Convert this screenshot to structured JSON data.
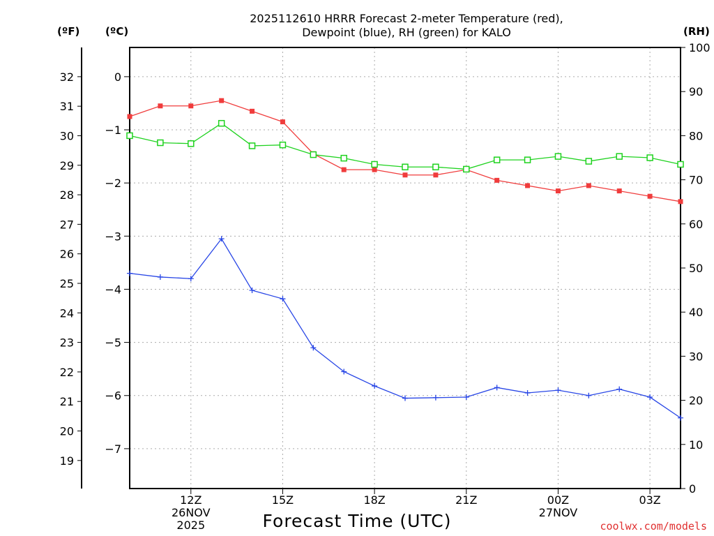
{
  "chart_data": {
    "type": "line",
    "title_line1": "2025112610 HRRR Forecast 2-meter Temperature (red),",
    "title_line2": "Dewpoint (blue), RH (green) for KALO",
    "xlabel": "Forecast Time (UTC)",
    "units": {
      "fahrenheit": "(ºF)",
      "celsius": "(ºC)",
      "rh": "(RH)"
    },
    "credit": "coolwx.com/models",
    "x_hours_utc": [
      10,
      11,
      12,
      13,
      14,
      15,
      16,
      17,
      18,
      19,
      20,
      21,
      22,
      23,
      24,
      25,
      26,
      27,
      28
    ],
    "x_ticks": [
      {
        "hour": 12,
        "lines": [
          "12Z",
          "26NOV",
          "2025"
        ]
      },
      {
        "hour": 15,
        "lines": [
          "15Z"
        ]
      },
      {
        "hour": 18,
        "lines": [
          "18Z"
        ]
      },
      {
        "hour": 21,
        "lines": [
          "21Z"
        ]
      },
      {
        "hour": 24,
        "lines": [
          "00Z",
          "27NOV"
        ]
      },
      {
        "hour": 27,
        "lines": [
          "03Z"
        ]
      }
    ],
    "y_celsius": {
      "range": [
        -7.75,
        0.55
      ],
      "ticks": [
        0,
        -1,
        -2,
        -3,
        -4,
        -5,
        -6,
        -7
      ],
      "tick_labels": [
        "0",
        "−1",
        "−2",
        "−3",
        "−4",
        "−5",
        "−6",
        "−7"
      ]
    },
    "y_fahrenheit": {
      "ticks": [
        19,
        20,
        21,
        22,
        23,
        24,
        25,
        26,
        27,
        28,
        29,
        30,
        31,
        32
      ],
      "tick_labels": [
        "19",
        "20",
        "21",
        "22",
        "23",
        "24",
        "25",
        "26",
        "27",
        "28",
        "29",
        "30",
        "31",
        "32"
      ]
    },
    "y_rh": {
      "range": [
        0,
        100
      ],
      "ticks": [
        0,
        10,
        20,
        30,
        40,
        50,
        60,
        70,
        80,
        90,
        100
      ],
      "tick_labels": [
        "0",
        "10",
        "20",
        "30",
        "40",
        "50",
        "60",
        "70",
        "80",
        "90",
        "100"
      ]
    },
    "series": [
      {
        "name": "2-meter Temperature",
        "color": "#f03c3c",
        "axis": "celsius",
        "marker": "filled-square",
        "values": [
          -0.75,
          -0.55,
          -0.55,
          -0.45,
          -0.65,
          -0.85,
          -1.45,
          -1.75,
          -1.75,
          -1.85,
          -1.85,
          -1.75,
          -1.95,
          -2.05,
          -2.15,
          -2.05,
          -2.15,
          -2.25,
          -2.35
        ]
      },
      {
        "name": "Dewpoint",
        "color": "#2846e6",
        "axis": "celsius",
        "marker": "plus",
        "values": [
          -3.7,
          -3.77,
          -3.8,
          -3.05,
          -4.02,
          -4.18,
          -5.1,
          -5.55,
          -5.82,
          -6.05,
          -6.04,
          -6.03,
          -5.85,
          -5.95,
          -5.9,
          -6.0,
          -5.88,
          -6.03,
          -6.42
        ]
      },
      {
        "name": "RH",
        "color": "#1ed21e",
        "axis": "rh",
        "marker": "open-square",
        "values": [
          80,
          78.4,
          78.2,
          82.8,
          77.7,
          77.9,
          75.7,
          74.9,
          73.5,
          72.9,
          72.9,
          72.4,
          74.5,
          74.5,
          75.3,
          74.2,
          75.3,
          75.0,
          73.5
        ]
      }
    ]
  }
}
